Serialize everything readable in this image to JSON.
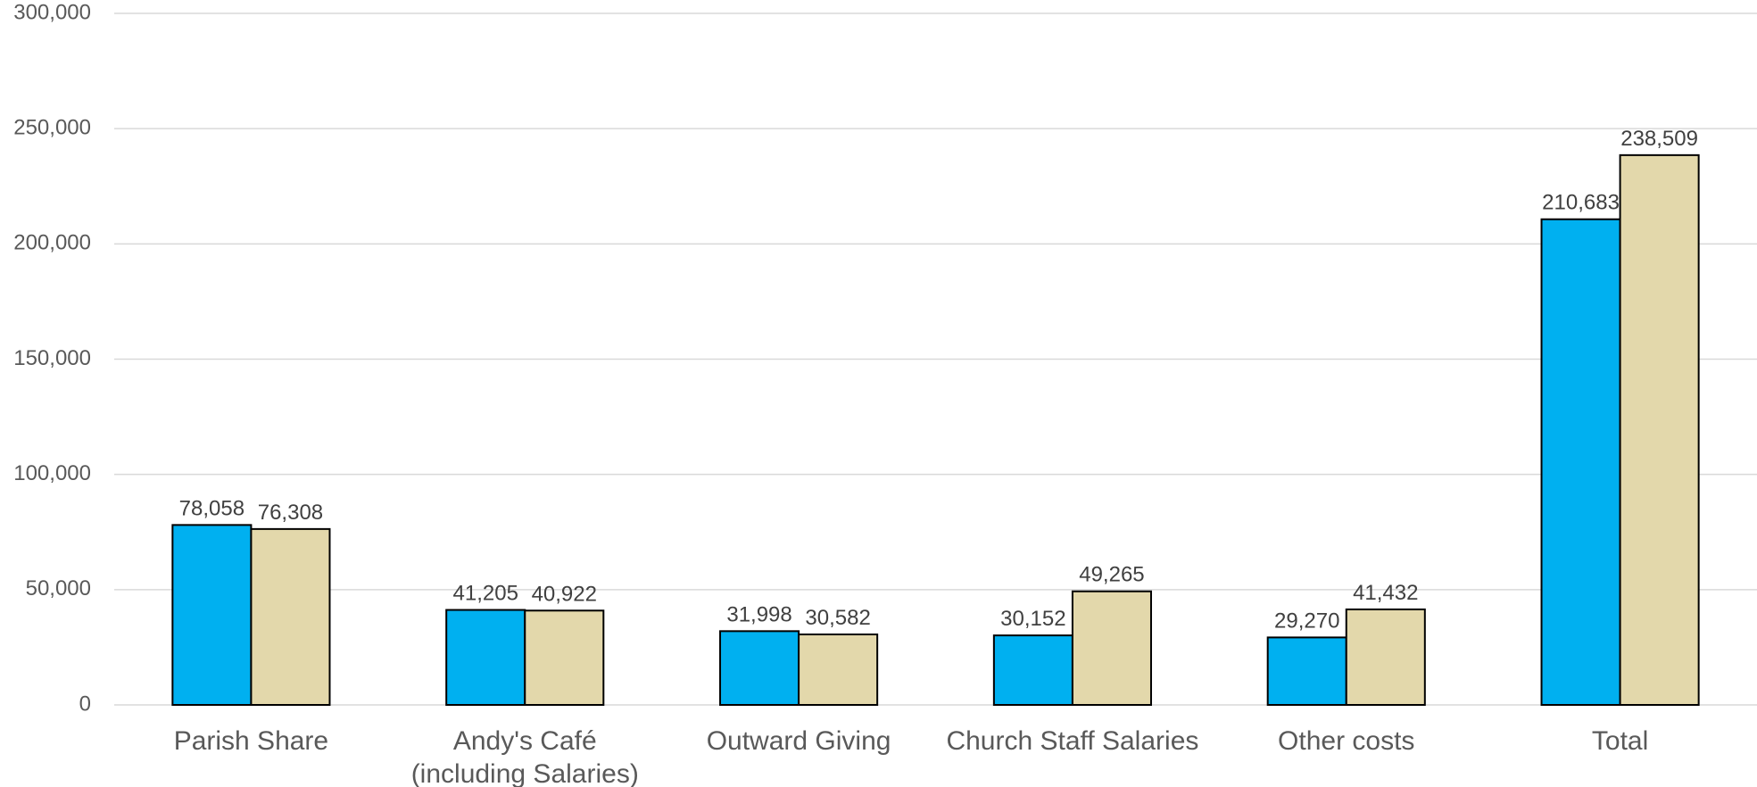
{
  "chart_data": {
    "type": "bar",
    "categories": [
      [
        "Parish Share"
      ],
      [
        "Andy's Café",
        "(including Salaries)"
      ],
      [
        "Outward Giving"
      ],
      [
        "Church Staff Salaries"
      ],
      [
        "Other costs"
      ],
      [
        "Total"
      ]
    ],
    "series": [
      {
        "values": [
          78058,
          41205,
          31998,
          30152,
          29270,
          210683
        ],
        "labels": [
          "78,058",
          "41,205",
          "31,998",
          "30,152",
          "29,270",
          "210,683"
        ],
        "color": "#00b0f0"
      },
      {
        "values": [
          76308,
          40922,
          30582,
          49265,
          41432,
          238509
        ],
        "labels": [
          "76,308",
          "40,922",
          "30,582",
          "49,265",
          "41,432",
          "238,509"
        ],
        "color": "#e3d8ab"
      }
    ],
    "yticks": [
      {
        "value": 0,
        "label": "0"
      },
      {
        "value": 50000,
        "label": "50,000"
      },
      {
        "value": 100000,
        "label": "100,000"
      },
      {
        "value": 150000,
        "label": "150,000"
      },
      {
        "value": 200000,
        "label": "200,000"
      },
      {
        "value": 250000,
        "label": "250,000"
      },
      {
        "value": 300000,
        "label": "300,000"
      }
    ],
    "ylim": [
      0,
      300000
    ],
    "grid": true,
    "legend": "none",
    "title": "",
    "xlabel": "",
    "ylabel": ""
  }
}
